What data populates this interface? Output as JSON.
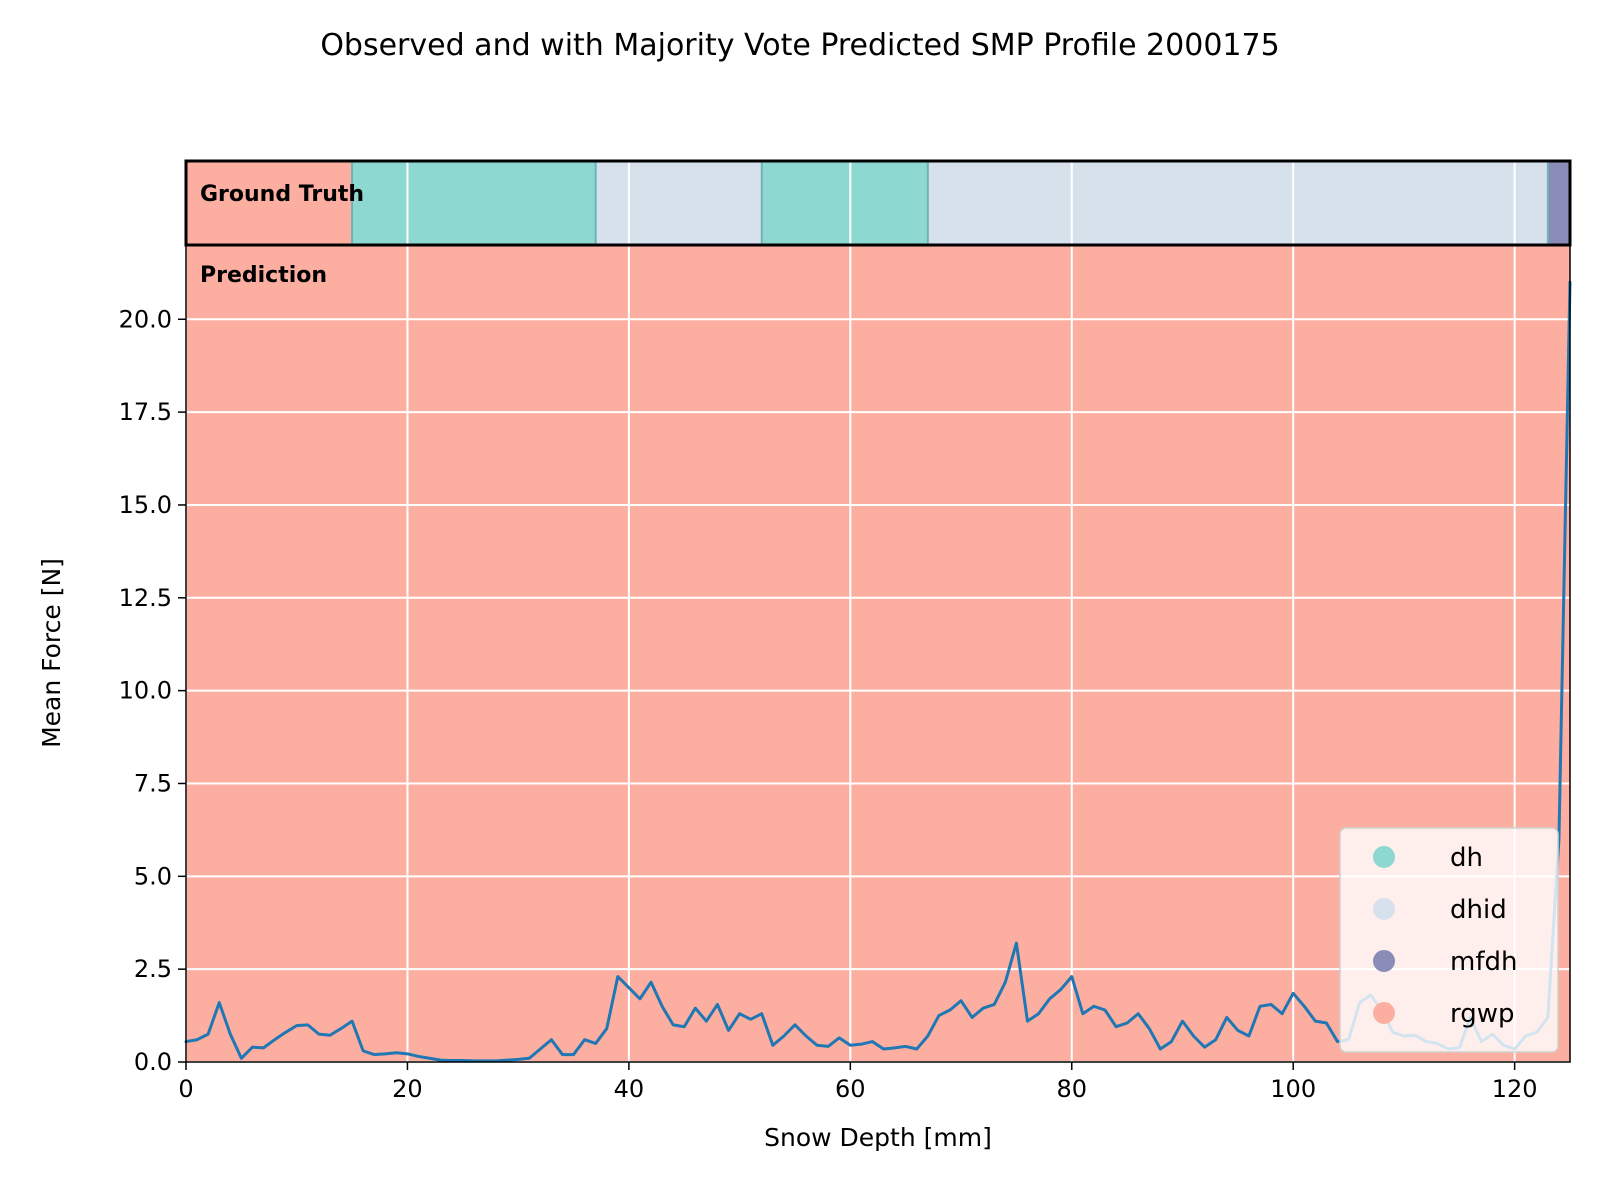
{
  "chart_data": {
    "type": "line",
    "title": "Observed and with Majority Vote Predicted SMP Profile 2000175",
    "xlabel": "Snow Depth [mm]",
    "ylabel": "Mean Force [N]",
    "xlim": [
      0,
      125
    ],
    "ylim": [
      0,
      22
    ],
    "xticks": [
      0,
      20,
      40,
      60,
      80,
      100,
      120
    ],
    "yticks": [
      0,
      2.5,
      5,
      7.5,
      10,
      12.5,
      15,
      17.5,
      20
    ],
    "xtick_labels": [
      "0",
      "20",
      "40",
      "60",
      "80",
      "100",
      "120"
    ],
    "ytick_labels": [
      "0.0",
      "2.5",
      "5.0",
      "7.5",
      "10.0",
      "12.5",
      "15.0",
      "17.5",
      "20.0"
    ],
    "grid": true,
    "legend_position": "lower-right",
    "colors": {
      "line": "#1f77b4",
      "dh": "#8dd8d0",
      "dhid": "#d7e1ec",
      "mfdh": "#8a8cb8",
      "rgwp": "#fcaea1"
    },
    "ground_truth_label": "Ground Truth",
    "prediction_label": "Prediction",
    "ground_truth": [
      {
        "from": 0,
        "to": 15,
        "class": "rgwp"
      },
      {
        "from": 15,
        "to": 37,
        "class": "dh"
      },
      {
        "from": 37,
        "to": 52,
        "class": "dhid"
      },
      {
        "from": 52,
        "to": 67,
        "class": "dh"
      },
      {
        "from": 67,
        "to": 123,
        "class": "dhid"
      },
      {
        "from": 123,
        "to": 125,
        "class": "mfdh"
      }
    ],
    "prediction": [
      {
        "from": 0,
        "to": 125,
        "class": "rgwp"
      }
    ],
    "legend": [
      {
        "label": "dh",
        "class": "dh"
      },
      {
        "label": "dhid",
        "class": "dhid"
      },
      {
        "label": "mfdh",
        "class": "mfdh"
      },
      {
        "label": "rgwp",
        "class": "rgwp"
      }
    ],
    "series": [
      {
        "x": [
          0,
          1,
          2,
          3,
          4,
          5,
          6,
          7,
          8,
          9,
          10,
          11,
          12,
          13,
          14,
          15,
          16,
          17,
          18,
          19,
          20,
          21,
          22,
          23,
          24,
          25,
          26,
          27,
          28,
          29,
          30,
          31,
          32,
          33,
          34,
          35,
          36,
          37,
          38,
          39,
          40,
          41,
          42,
          43,
          44,
          45,
          46,
          47,
          48,
          49,
          50,
          51,
          52,
          53,
          54,
          55,
          56,
          57,
          58,
          59,
          60,
          61,
          62,
          63,
          64,
          65,
          66,
          67,
          68,
          69,
          70,
          71,
          72,
          73,
          74,
          75,
          76,
          77,
          78,
          79,
          80,
          81,
          82,
          83,
          84,
          85,
          86,
          87,
          88,
          89,
          90,
          91,
          92,
          93,
          94,
          95,
          96,
          97,
          98,
          99,
          100,
          101,
          102,
          103,
          104,
          105,
          106,
          107,
          108,
          109,
          110,
          111,
          112,
          113,
          114,
          115,
          116,
          117,
          118,
          119,
          120,
          121,
          122,
          123,
          124,
          125
        ],
        "y": [
          0.55,
          0.6,
          0.75,
          1.6,
          0.75,
          0.1,
          0.4,
          0.38,
          0.6,
          0.8,
          0.98,
          1.0,
          0.75,
          0.72,
          0.9,
          1.1,
          0.3,
          0.2,
          0.22,
          0.25,
          0.22,
          0.15,
          0.1,
          0.05,
          0.04,
          0.04,
          0.03,
          0.03,
          0.03,
          0.05,
          0.07,
          0.1,
          0.35,
          0.6,
          0.2,
          0.2,
          0.6,
          0.5,
          0.9,
          2.3,
          2.0,
          1.7,
          2.15,
          1.5,
          1.0,
          0.95,
          1.45,
          1.1,
          1.55,
          0.85,
          1.3,
          1.15,
          1.3,
          0.45,
          0.7,
          1.0,
          0.7,
          0.45,
          0.42,
          0.65,
          0.45,
          0.48,
          0.55,
          0.35,
          0.38,
          0.42,
          0.35,
          0.7,
          1.25,
          1.4,
          1.65,
          1.2,
          1.45,
          1.55,
          2.15,
          3.2,
          1.1,
          1.3,
          1.7,
          1.95,
          2.3,
          1.3,
          1.5,
          1.4,
          0.95,
          1.05,
          1.3,
          0.9,
          0.35,
          0.55,
          1.1,
          0.7,
          0.4,
          0.6,
          1.2,
          0.85,
          0.7,
          1.5,
          1.55,
          1.3,
          1.85,
          1.5,
          1.1,
          1.05,
          0.55,
          0.6,
          1.6,
          1.8,
          1.4,
          0.8,
          0.7,
          0.72,
          0.55,
          0.5,
          0.35,
          0.38,
          1.2,
          0.55,
          0.75,
          0.45,
          0.35,
          0.7,
          0.8,
          1.2,
          6.0,
          21.0
        ]
      }
    ]
  }
}
